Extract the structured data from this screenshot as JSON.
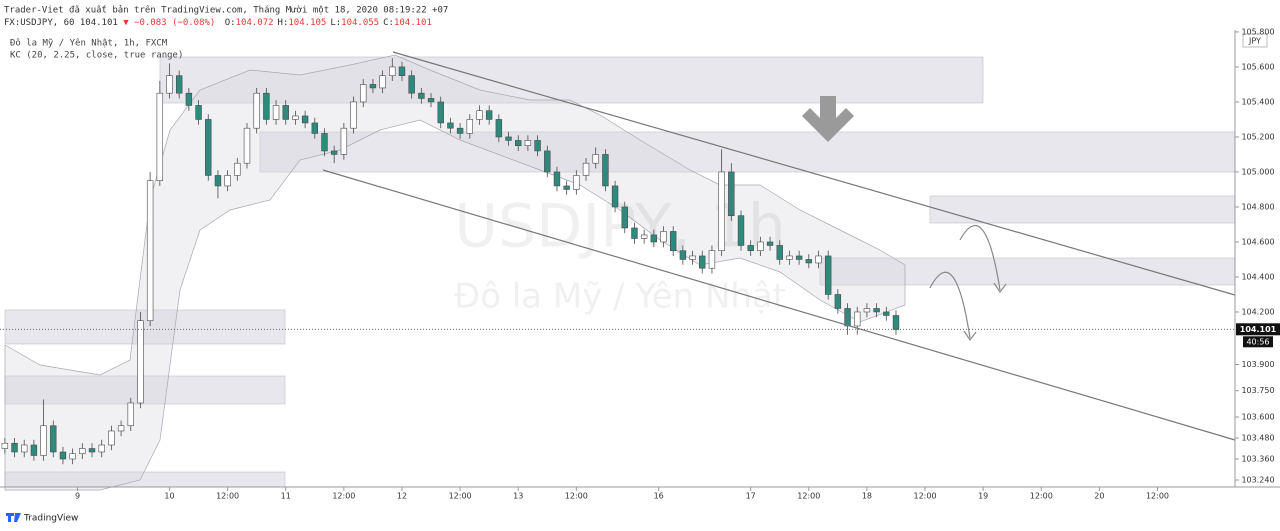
{
  "header": {
    "publisher": "Trader-Viet đã xuất bản trên TradingView.com, Tháng Mười một 18, 2020 08:19:22 +07",
    "symbol": "FX:USDJPY, 60 104.101",
    "change": "▼ −0.083 (−0.08%)",
    "ohlc": [
      {
        "label": "O:",
        "value": "104.072"
      },
      {
        "label": "H:",
        "value": "104.105"
      },
      {
        "label": "L:",
        "value": "104.055"
      },
      {
        "label": "C:",
        "value": "104.101"
      }
    ]
  },
  "footer": {
    "brand": "TradingView"
  },
  "chart_data": {
    "type": "candlestick",
    "legend": [
      "Đô la Mỹ / Yên Nhật, 1h, FXCM",
      "KC (20, 2.25, close, true range)"
    ],
    "watermark": {
      "symbol": "USDJPY, 1h",
      "name": "Đô la Mỹ / Yên Nhật"
    },
    "currency": "JPY",
    "last_price": {
      "value": 104.101,
      "label": "104.101"
    },
    "countdown": "40:56",
    "up_color": "#ffffff",
    "down_color": "#2f8a7e",
    "wick_color": "#4a4a4a",
    "xlim": [
      0,
      255
    ],
    "ylim": [
      103.2,
      105.811
    ],
    "xticks": [
      {
        "value": 16,
        "label": "9"
      },
      {
        "value": 35,
        "label": "10"
      },
      {
        "value": 47,
        "label": "12:00"
      },
      {
        "value": 59,
        "label": "11"
      },
      {
        "value": 71,
        "label": "12:00"
      },
      {
        "value": 83,
        "label": "12"
      },
      {
        "value": 95,
        "label": "12:00"
      },
      {
        "value": 107,
        "label": "13"
      },
      {
        "value": 119,
        "label": "12:00"
      },
      {
        "value": 136,
        "label": "16"
      },
      {
        "value": 155,
        "label": "17"
      },
      {
        "value": 167,
        "label": "12:00"
      },
      {
        "value": 179,
        "label": "18"
      },
      {
        "value": 191,
        "label": "12:00"
      },
      {
        "value": 203,
        "label": "19"
      },
      {
        "value": 215,
        "label": "12:00"
      },
      {
        "value": 227,
        "label": "20"
      },
      {
        "value": 239,
        "label": "12:00"
      }
    ],
    "yticks": [
      {
        "value": 105.8,
        "label": "105.800"
      },
      {
        "value": 105.6,
        "label": "105.600"
      },
      {
        "value": 105.4,
        "label": "105.400"
      },
      {
        "value": 105.2,
        "label": "105.200"
      },
      {
        "value": 105,
        "label": "105.000"
      },
      {
        "value": 104.8,
        "label": "104.800"
      },
      {
        "value": 104.6,
        "label": "104.600"
      },
      {
        "value": 104.4,
        "label": "104.400"
      },
      {
        "value": 104.2,
        "label": "104.200"
      },
      {
        "value": 103.9,
        "label": "103.900"
      },
      {
        "value": 103.75,
        "label": "103.750"
      },
      {
        "value": 103.6,
        "label": "103.600"
      },
      {
        "value": 103.48,
        "label": "103.480"
      },
      {
        "value": 103.36,
        "label": "103.360"
      },
      {
        "value": 103.24,
        "label": "103.240"
      }
    ],
    "x": [
      1,
      3,
      5,
      7,
      9,
      11,
      13,
      15,
      17,
      19,
      21,
      23,
      25,
      27,
      29,
      31,
      33,
      35,
      37,
      39,
      41,
      43,
      45,
      47,
      49,
      51,
      53,
      55,
      57,
      59,
      61,
      63,
      65,
      67,
      69,
      71,
      73,
      75,
      77,
      79,
      81,
      83,
      85,
      87,
      89,
      91,
      93,
      95,
      97,
      99,
      101,
      103,
      105,
      107,
      109,
      111,
      113,
      115,
      117,
      119,
      121,
      123,
      125,
      127,
      129,
      131,
      133,
      135,
      137,
      139,
      141,
      143,
      145,
      147,
      149,
      151,
      153,
      155,
      157,
      159,
      161,
      163,
      165,
      167,
      169,
      171,
      173,
      175,
      177,
      179,
      181,
      183,
      185
    ],
    "open": [
      103.42,
      103.45,
      103.4,
      103.44,
      103.38,
      103.55,
      103.4,
      103.36,
      103.39,
      103.42,
      103.4,
      103.44,
      103.52,
      103.55,
      103.68,
      104.15,
      104.95,
      105.45,
      105.55,
      105.45,
      105.38,
      105.3,
      104.98,
      104.92,
      104.98,
      105.05,
      105.25,
      105.45,
      105.3,
      105.38,
      105.3,
      105.32,
      105.28,
      105.22,
      105.12,
      105.1,
      105.25,
      105.4,
      105.5,
      105.48,
      105.55,
      105.6,
      105.55,
      105.45,
      105.42,
      105.4,
      105.28,
      105.25,
      105.22,
      105.3,
      105.35,
      105.3,
      105.2,
      105.18,
      105.15,
      105.18,
      105.12,
      105.0,
      104.92,
      104.9,
      104.98,
      105.05,
      105.1,
      104.92,
      104.8,
      104.68,
      104.62,
      104.64,
      104.6,
      104.66,
      104.55,
      104.5,
      104.52,
      104.45,
      104.55,
      105.0,
      104.75,
      104.58,
      104.55,
      104.6,
      104.58,
      104.5,
      104.52,
      104.5,
      104.48,
      104.52,
      104.3,
      104.22,
      104.12,
      104.2,
      104.22,
      104.2,
      104.18
    ],
    "high": [
      103.48,
      103.48,
      103.47,
      103.47,
      103.7,
      103.58,
      103.43,
      103.42,
      103.45,
      103.45,
      103.47,
      103.55,
      103.58,
      103.71,
      104.2,
      105.0,
      105.52,
      105.62,
      105.58,
      105.48,
      105.41,
      105.33,
      105.01,
      105.01,
      105.08,
      105.28,
      105.48,
      105.48,
      105.41,
      105.41,
      105.35,
      105.35,
      105.31,
      105.25,
      105.15,
      105.28,
      105.43,
      105.53,
      105.53,
      105.58,
      105.65,
      105.63,
      105.58,
      105.48,
      105.45,
      105.43,
      105.31,
      105.28,
      105.33,
      105.38,
      105.38,
      105.33,
      105.23,
      105.21,
      105.21,
      105.21,
      105.15,
      105.03,
      104.95,
      105.01,
      105.08,
      105.14,
      105.13,
      104.95,
      104.83,
      104.71,
      104.67,
      104.67,
      104.69,
      104.69,
      104.58,
      104.55,
      104.55,
      104.58,
      105.13,
      105.05,
      104.78,
      104.61,
      104.63,
      104.63,
      104.61,
      104.55,
      104.55,
      104.53,
      104.55,
      104.55,
      104.33,
      104.25,
      104.23,
      104.25,
      104.25,
      104.23,
      104.21
    ],
    "low": [
      103.39,
      103.37,
      103.37,
      103.35,
      103.35,
      103.37,
      103.33,
      103.33,
      103.36,
      103.37,
      103.37,
      103.41,
      103.49,
      103.52,
      103.65,
      104.12,
      104.92,
      105.42,
      105.42,
      105.35,
      105.27,
      104.95,
      104.85,
      104.89,
      104.95,
      105.02,
      105.22,
      105.27,
      105.27,
      105.27,
      105.27,
      105.25,
      105.19,
      105.09,
      105.05,
      105.07,
      105.22,
      105.37,
      105.45,
      105.45,
      105.52,
      105.52,
      105.42,
      105.39,
      105.37,
      105.25,
      105.22,
      105.19,
      105.19,
      105.27,
      105.27,
      105.17,
      105.15,
      105.12,
      105.12,
      105.09,
      104.97,
      104.89,
      104.87,
      104.87,
      104.95,
      105.02,
      104.89,
      104.77,
      104.65,
      104.59,
      104.59,
      104.57,
      104.57,
      104.52,
      104.47,
      104.47,
      104.42,
      104.42,
      104.52,
      104.72,
      104.55,
      104.52,
      104.52,
      104.55,
      104.47,
      104.47,
      104.47,
      104.45,
      104.45,
      104.27,
      104.19,
      104.07,
      104.07,
      104.17,
      104.17,
      104.15,
      104.07
    ],
    "close": [
      103.45,
      103.4,
      103.44,
      103.38,
      103.55,
      103.4,
      103.36,
      103.39,
      103.42,
      103.4,
      103.44,
      103.52,
      103.55,
      103.68,
      104.15,
      104.95,
      105.45,
      105.55,
      105.45,
      105.38,
      105.3,
      104.98,
      104.92,
      104.98,
      105.05,
      105.25,
      105.45,
      105.3,
      105.38,
      105.3,
      105.32,
      105.28,
      105.22,
      105.12,
      105.1,
      105.25,
      105.4,
      105.5,
      105.48,
      105.55,
      105.6,
      105.55,
      105.45,
      105.42,
      105.4,
      105.28,
      105.25,
      105.22,
      105.3,
      105.35,
      105.3,
      105.2,
      105.18,
      105.15,
      105.18,
      105.12,
      105.0,
      104.92,
      104.9,
      104.98,
      105.05,
      105.1,
      104.92,
      104.8,
      104.68,
      104.62,
      104.64,
      104.6,
      104.66,
      104.55,
      104.5,
      104.52,
      104.45,
      104.55,
      105.0,
      104.75,
      104.58,
      104.55,
      104.6,
      104.58,
      104.5,
      104.52,
      104.5,
      104.48,
      104.52,
      104.3,
      104.22,
      104.12,
      104.2,
      104.22,
      104.2,
      104.18,
      104.1
    ]
  }
}
